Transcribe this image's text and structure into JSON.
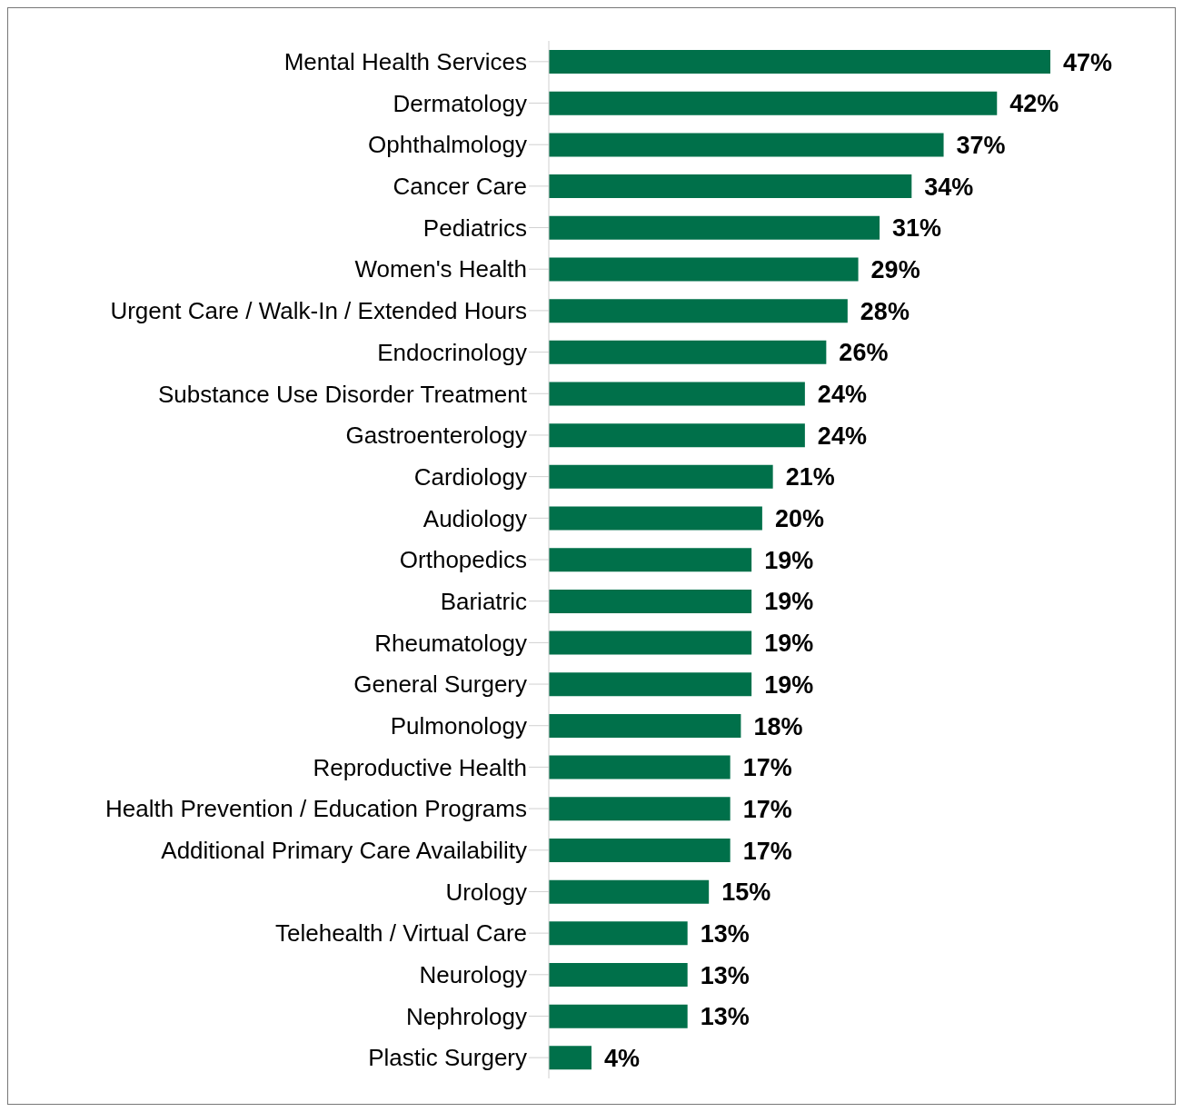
{
  "chart_data": {
    "type": "bar",
    "orientation": "horizontal",
    "relative": false,
    "categories": [
      "Mental Health Services",
      "Dermatology",
      "Ophthalmology",
      "Cancer Care",
      "Pediatrics",
      "Women's Health",
      "Urgent Care / Walk-In / Extended Hours",
      "Endocrinology",
      "Substance Use Disorder Treatment",
      "Gastroenterology",
      "Cardiology",
      "Audiology",
      "Orthopedics",
      "Bariatric",
      "Rheumatology",
      "General Surgery",
      "Pulmonology",
      "Reproductive Health",
      "Health Prevention / Education Programs",
      "Additional Primary Care Availability",
      "Urology",
      "Telehealth / Virtual Care",
      "Neurology",
      "Nephrology",
      "Plastic Surgery"
    ],
    "values": [
      47,
      42,
      37,
      34,
      31,
      29,
      28,
      26,
      24,
      24,
      21,
      20,
      19,
      19,
      19,
      19,
      18,
      17,
      17,
      17,
      15,
      13,
      13,
      13,
      4
    ],
    "value_labels": [
      "47%",
      "42%",
      "37%",
      "34%",
      "31%",
      "29%",
      "28%",
      "26%",
      "24%",
      "24%",
      "21%",
      "20%",
      "19%",
      "19%",
      "19%",
      "19%",
      "18%",
      "17%",
      "17%",
      "17%",
      "15%",
      "13%",
      "13%",
      "13%",
      "4%"
    ],
    "color": "#00704a"
  }
}
